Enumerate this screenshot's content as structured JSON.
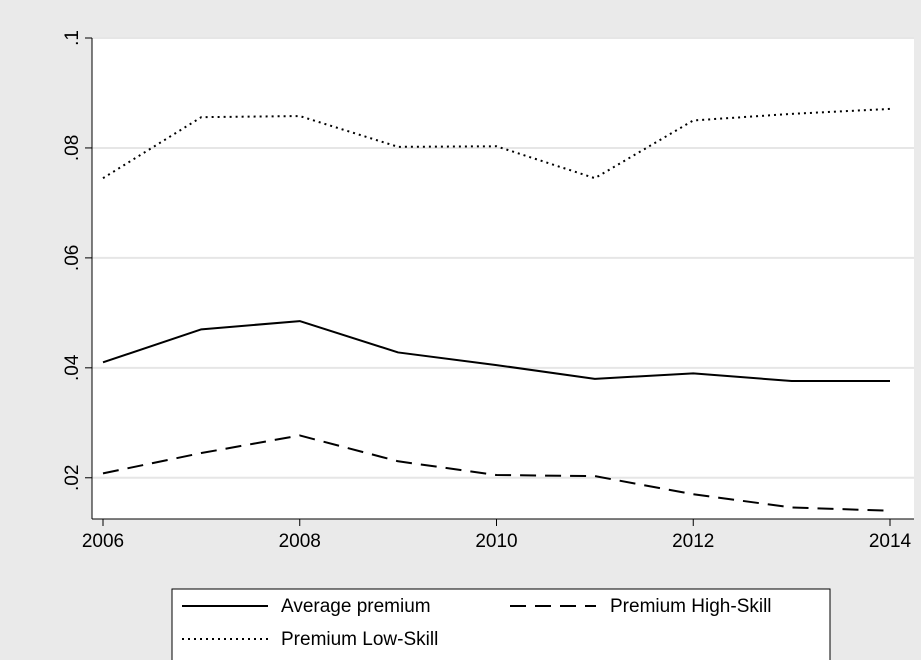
{
  "chart_data": {
    "type": "line",
    "title": "",
    "xlabel": "",
    "ylabel": "",
    "x": [
      2006,
      2007,
      2008,
      2009,
      2010,
      2011,
      2012,
      2013,
      2014
    ],
    "xticks": [
      2006,
      2008,
      2010,
      2012,
      2014
    ],
    "yticks": [
      0.02,
      0.04,
      0.06,
      0.08,
      0.1
    ],
    "ytick_labels": [
      ".02",
      ".04",
      ".06",
      ".08",
      ".1"
    ],
    "ylim": [
      0.0125,
      0.1
    ],
    "xlim": [
      2006,
      2014
    ],
    "grid": true,
    "legend_position": "bottom",
    "series": [
      {
        "name": "Average premium",
        "style": "solid",
        "values": [
          0.041,
          0.047,
          0.0485,
          0.0428,
          0.0405,
          0.038,
          0.039,
          0.0376,
          0.0376
        ]
      },
      {
        "name": "Premium High-Skill",
        "style": "dashed",
        "values": [
          0.0208,
          0.0245,
          0.0277,
          0.023,
          0.0205,
          0.0203,
          0.017,
          0.0146,
          0.014
        ]
      },
      {
        "name": "Premium Low-Skill",
        "style": "dotted",
        "values": [
          0.0745,
          0.0856,
          0.0858,
          0.0802,
          0.0803,
          0.0745,
          0.085,
          0.0862,
          0.0871
        ]
      }
    ],
    "colors": {
      "background": "#eaeaea",
      "plot": "#ffffff",
      "line": "#000000",
      "grid": "#e6e6e6"
    }
  }
}
